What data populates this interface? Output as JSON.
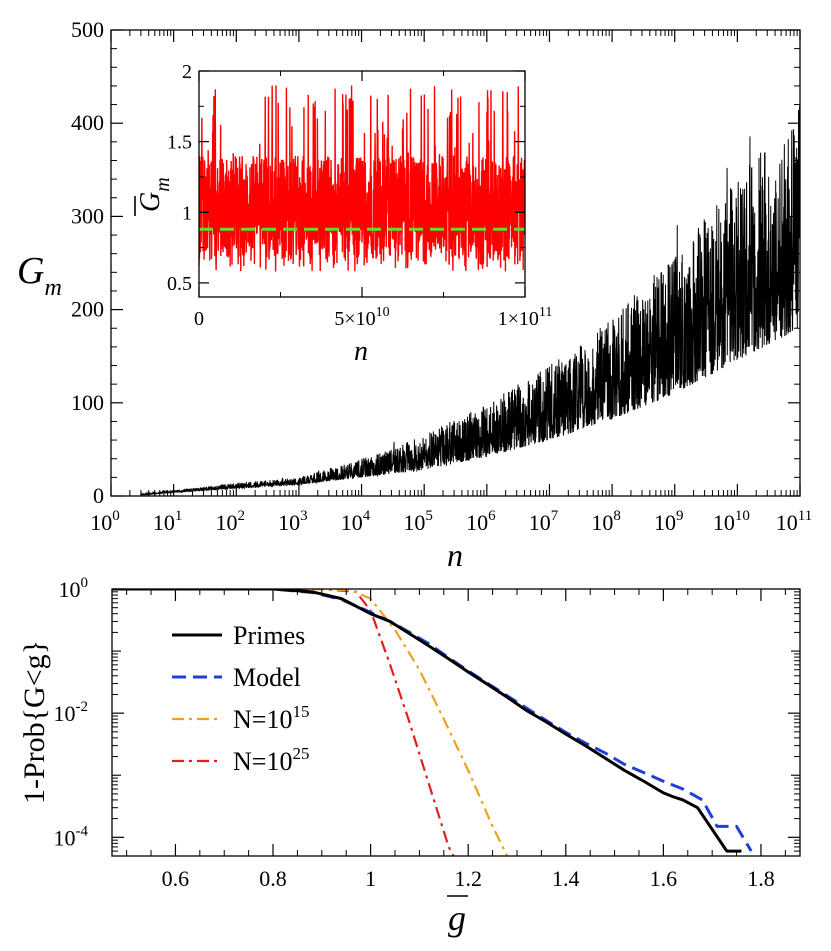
{
  "chart_data": [
    {
      "type": "line",
      "panel": "top",
      "ylabel": "G",
      "ylabel_sub": "m",
      "xlabel": "n",
      "x_scale": "log",
      "xlim": [
        1,
        100000000000
      ],
      "ylim": [
        0,
        500
      ],
      "x_ticks": [
        {
          "base": "10",
          "exp": "0"
        },
        {
          "base": "10",
          "exp": "1"
        },
        {
          "base": "10",
          "exp": "2"
        },
        {
          "base": "10",
          "exp": "3"
        },
        {
          "base": "10",
          "exp": "4"
        },
        {
          "base": "10",
          "exp": "5"
        },
        {
          "base": "10",
          "exp": "6"
        },
        {
          "base": "10",
          "exp": "7"
        },
        {
          "base": "10",
          "exp": "8"
        },
        {
          "base": "10",
          "exp": "9"
        },
        {
          "base": "10",
          "exp": "10"
        },
        {
          "base": "10",
          "exp": "11"
        }
      ],
      "y_ticks": [
        "0",
        "100",
        "200",
        "300",
        "400",
        "500"
      ],
      "series": [
        {
          "color": "#000000",
          "x": [
            3,
            10,
            100,
            1000,
            10000,
            100000,
            1000000,
            10000000,
            100000000,
            1000000000,
            10000000000,
            100000000000
          ],
          "lower": [
            1,
            4,
            8,
            12,
            20,
            28,
            42,
            60,
            82,
            110,
            145,
            180
          ],
          "upper": [
            2,
            6,
            14,
            20,
            40,
            65,
            100,
            140,
            190,
            260,
            340,
            420
          ]
        }
      ]
    },
    {
      "type": "line",
      "panel": "inset",
      "ylabel": "G",
      "ylabel_sub": "m",
      "xlabel": "n",
      "xlim": [
        0,
        100000000000
      ],
      "ylim": [
        0.4,
        2
      ],
      "x_ticks": [
        {
          "value": 0,
          "label": "0"
        },
        {
          "value": 50000000000,
          "label": "5×10",
          "exp": "10"
        },
        {
          "value": 100000000000,
          "label": "1×10",
          "exp": "11"
        }
      ],
      "y_ticks": [
        "0.5",
        "1",
        "1.5",
        "2"
      ],
      "series": [
        {
          "color": "#ff0000",
          "x": [
            0,
            100000000000
          ],
          "band_low": 0.65,
          "band_high": 1.4,
          "min": 0.58,
          "max": 1.9
        },
        {
          "color": "#66dd22",
          "style": "dashed",
          "x": [
            0,
            100000000000
          ],
          "y": [
            0.88,
            0.88
          ]
        }
      ]
    },
    {
      "type": "line",
      "panel": "bottom",
      "ylabel": "1-Prob{G<g}",
      "xlabel": "g",
      "y_scale": "log",
      "xlim": [
        0.47,
        1.88
      ],
      "ylim": [
        5e-05,
        1
      ],
      "x_ticks": [
        "0.6",
        "0.8",
        "1",
        "1.2",
        "1.4",
        "1.6",
        "1.8"
      ],
      "y_ticks": [
        {
          "value": 1,
          "base": "10",
          "exp": "0"
        },
        {
          "value": 0.01,
          "base": "10",
          "exp": "-2"
        },
        {
          "value": 0.0001,
          "base": "10",
          "exp": "-4"
        }
      ],
      "legend_position": "top-left",
      "series": [
        {
          "name": "Primes",
          "color": "#000000",
          "style": "solid",
          "x": [
            0.47,
            0.8,
            0.88,
            0.94,
            1.0,
            1.04,
            1.08,
            1.12,
            1.16,
            1.2,
            1.24,
            1.28,
            1.32,
            1.36,
            1.4,
            1.44,
            1.48,
            1.52,
            1.56,
            1.6,
            1.62,
            1.64,
            1.67,
            1.73,
            1.76
          ],
          "y": [
            1,
            1,
            0.9,
            0.7,
            0.4,
            0.3,
            0.19,
            0.12,
            0.075,
            0.046,
            0.029,
            0.018,
            0.011,
            0.0072,
            0.0046,
            0.003,
            0.0019,
            0.0012,
            0.0008,
            0.00052,
            0.00045,
            0.0004,
            0.0003,
            6e-05,
            6e-05
          ]
        },
        {
          "name": "Model",
          "color": "#1f3fd6",
          "style": "dashed",
          "x": [
            0.47,
            0.8,
            0.88,
            0.94,
            1.0,
            1.04,
            1.08,
            1.12,
            1.16,
            1.2,
            1.24,
            1.28,
            1.32,
            1.36,
            1.4,
            1.44,
            1.48,
            1.52,
            1.56,
            1.6,
            1.64,
            1.68,
            1.71,
            1.75,
            1.78
          ],
          "y": [
            1,
            1,
            0.88,
            0.68,
            0.42,
            0.3,
            0.2,
            0.13,
            0.078,
            0.048,
            0.03,
            0.019,
            0.012,
            0.0076,
            0.0049,
            0.0033,
            0.0023,
            0.0015,
            0.0011,
            0.0008,
            0.0006,
            0.0004,
            0.00015,
            0.00015,
            6e-05
          ]
        },
        {
          "name": "N=10",
          "name_exp": "15",
          "color": "#f0a020",
          "style": "dash-dot",
          "x": [
            0.47,
            0.9,
            0.96,
            1.0,
            1.05,
            1.1,
            1.15,
            1.2,
            1.25,
            1.28
          ],
          "y": [
            1,
            1,
            0.95,
            0.7,
            0.22,
            0.05,
            0.008,
            0.0012,
            0.00015,
            5e-05
          ]
        },
        {
          "name": "N=10",
          "name_exp": "25",
          "color": "#e02020",
          "style": "dash-dot",
          "x": [
            0.47,
            0.9,
            0.97,
            1.0,
            1.04,
            1.08,
            1.12,
            1.16,
            1.17
          ],
          "y": [
            1,
            1,
            0.9,
            0.45,
            0.06,
            0.007,
            0.0007,
            7e-05,
            5e-05
          ]
        }
      ]
    }
  ]
}
